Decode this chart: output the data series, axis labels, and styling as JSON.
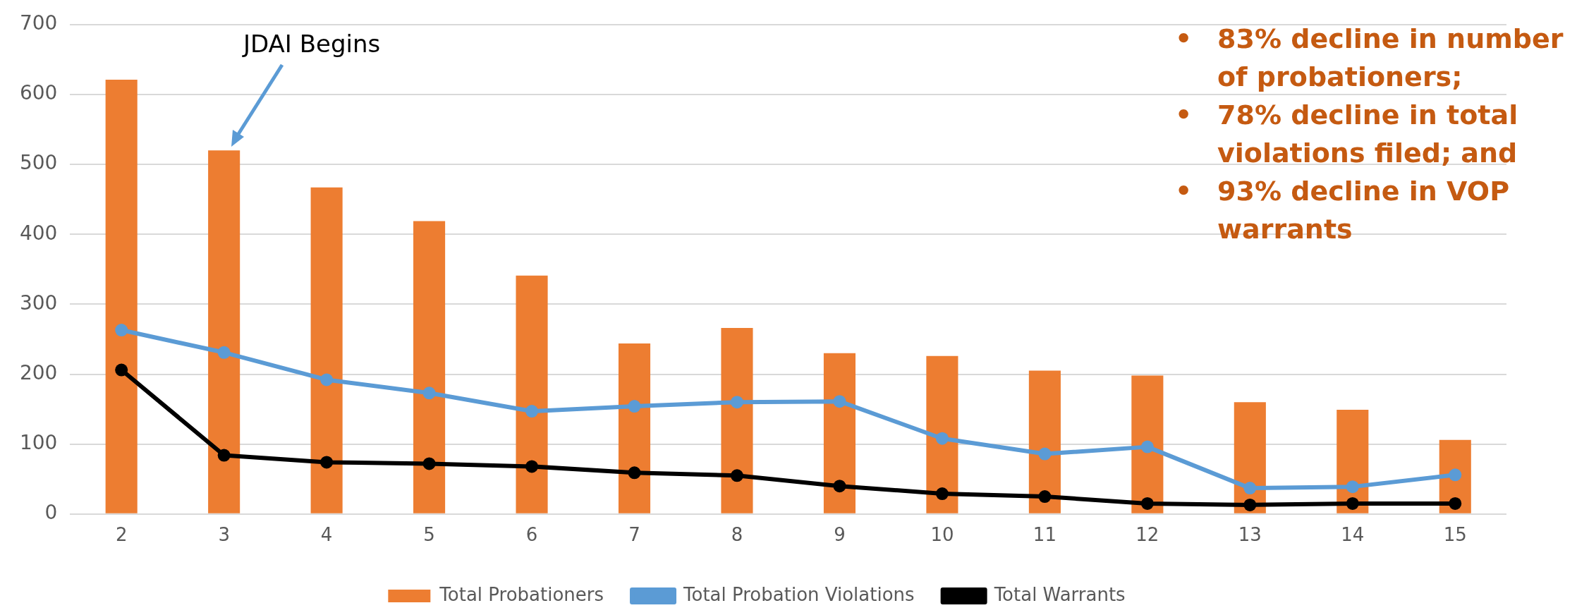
{
  "chart_data": {
    "type": "bar",
    "categories": [
      "2",
      "3",
      "4",
      "5",
      "6",
      "7",
      "8",
      "9",
      "10",
      "11",
      "12",
      "13",
      "14",
      "15"
    ],
    "series": [
      {
        "name": "Total Probationers",
        "color": "#ed7d31",
        "values": [
          621,
          520,
          467,
          419,
          341,
          244,
          266,
          230,
          226,
          205,
          198,
          160,
          149,
          106
        ]
      },
      {
        "name": "Total Probation Violations",
        "type": "line",
        "color": "#5b9bd5",
        "values": [
          263,
          231,
          192,
          173,
          147,
          154,
          160,
          161,
          108,
          86,
          96,
          37,
          39,
          56
        ]
      },
      {
        "name": "Total Warrants",
        "type": "line",
        "color": "#000000",
        "values": [
          206,
          84,
          74,
          72,
          68,
          59,
          55,
          40,
          29,
          25,
          15,
          13,
          15,
          15
        ]
      }
    ],
    "ylim": [
      0,
      700
    ],
    "yticks": [
      0,
      100,
      200,
      300,
      400,
      500,
      600,
      700
    ],
    "grid": "y",
    "legend": "bottom",
    "marker": "circle",
    "line_style": "solid",
    "annotations": [
      "JDAI Begins",
      "• 83% decline in number of probationers;",
      "• 78% decline in total violations filed; and",
      "• 93% decline in VOP warrants"
    ]
  }
}
